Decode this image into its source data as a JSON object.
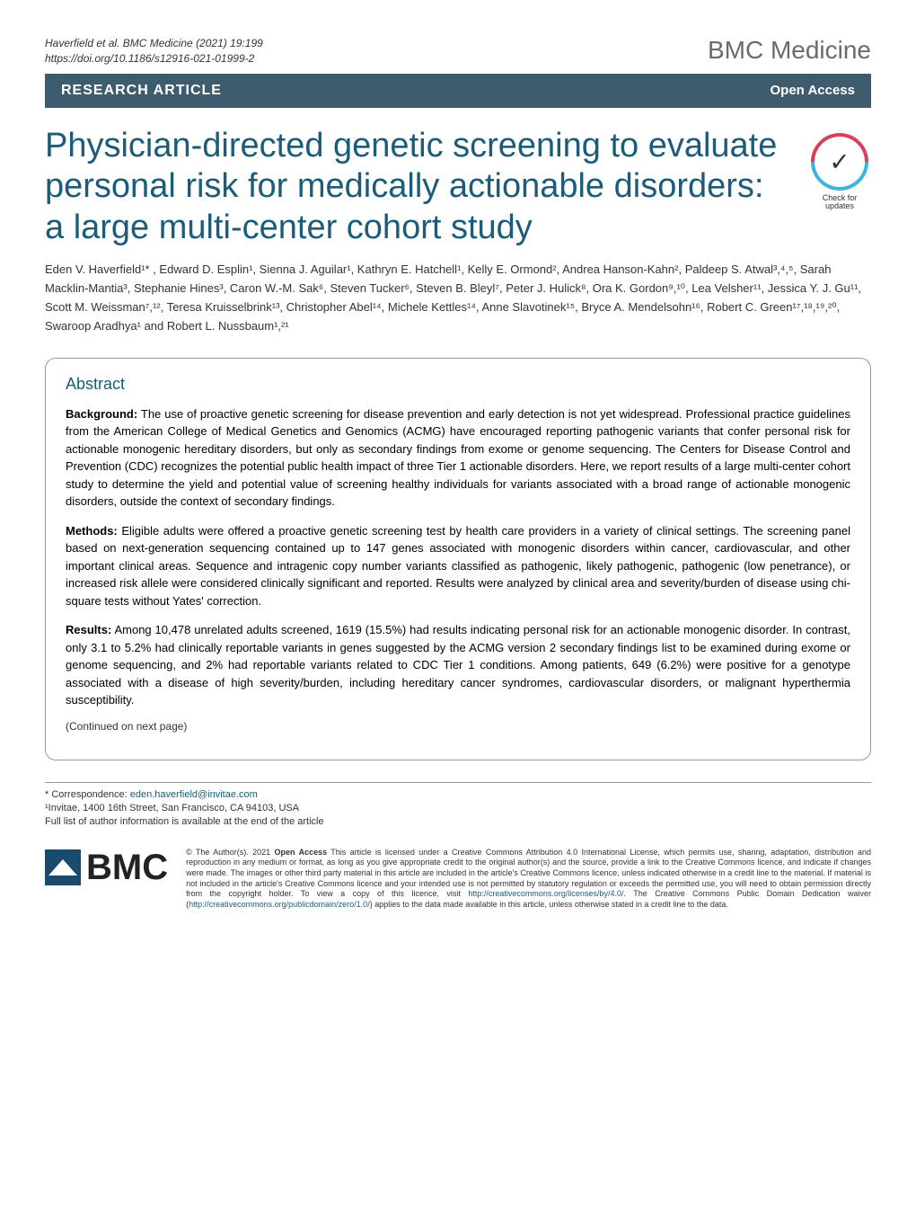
{
  "header": {
    "citation_line1": "Haverfield et al. BMC Medicine          (2021) 19:199",
    "citation_line2": "https://doi.org/10.1186/s12916-021-01999-2",
    "journal": "BMC Medicine"
  },
  "bar": {
    "article_type": "RESEARCH ARTICLE",
    "access": "Open Access"
  },
  "title": "Physician-directed genetic screening to evaluate personal risk for medically actionable disorders: a large multi-center cohort study",
  "check_updates": {
    "line1": "Check for",
    "line2": "updates"
  },
  "authors": "Eden V. Haverfield¹*   , Edward D. Esplin¹, Sienna J. Aguilar¹, Kathryn E. Hatchell¹, Kelly E. Ormond², Andrea Hanson-Kahn², Paldeep S. Atwal³,⁴,⁵, Sarah Macklin-Mantia³, Stephanie Hines³, Caron W.-M. Sak⁶, Steven Tucker⁶, Steven B. Bleyl⁷, Peter J. Hulick⁸, Ora K. Gordon⁹,¹⁰, Lea Velsher¹¹, Jessica Y. J. Gu¹¹, Scott M. Weissman⁷,¹², Teresa Kruisselbrink¹³, Christopher Abel¹⁴, Michele Kettles¹⁴, Anne Slavotinek¹⁵, Bryce A. Mendelsohn¹⁶, Robert C. Green¹⁷,¹⁸,¹⁹,²⁰, Swaroop Aradhya¹ and Robert L. Nussbaum¹,²¹",
  "abstract": {
    "heading": "Abstract",
    "background_label": "Background:",
    "background": " The use of proactive genetic screening for disease prevention and early detection is not yet widespread. Professional practice guidelines from the American College of Medical Genetics and Genomics (ACMG) have encouraged reporting pathogenic variants that confer personal risk for actionable monogenic hereditary disorders, but only as secondary findings from exome or genome sequencing. The Centers for Disease Control and Prevention (CDC) recognizes the potential public health impact of three Tier 1 actionable disorders. Here, we report results of a large multi-center cohort study to determine the yield and potential value of screening healthy individuals for variants associated with a broad range of actionable monogenic disorders, outside the context of secondary findings.",
    "methods_label": "Methods:",
    "methods": " Eligible adults were offered a proactive genetic screening test by health care providers in a variety of clinical settings. The screening panel based on next-generation sequencing contained up to 147 genes associated with monogenic disorders within cancer, cardiovascular, and other important clinical areas. Sequence and intragenic copy number variants classified as pathogenic, likely pathogenic, pathogenic (low penetrance), or increased risk allele were considered clinically significant and reported. Results were analyzed by clinical area and severity/burden of disease using chi-square tests without Yates' correction.",
    "results_label": "Results:",
    "results": " Among 10,478 unrelated adults screened, 1619 (15.5%) had results indicating personal risk for an actionable monogenic disorder. In contrast, only 3.1 to 5.2% had clinically reportable variants in genes suggested by the ACMG version 2 secondary findings list to be examined during exome or genome sequencing, and 2% had reportable variants related to CDC Tier 1 conditions. Among patients, 649 (6.2%) were positive for a genotype associated with a disease of high severity/burden, including hereditary cancer syndromes, cardiovascular disorders, or malignant hyperthermia susceptibility.",
    "continued": "(Continued on next page)"
  },
  "correspondence": {
    "star": "* Correspondence: ",
    "email": "eden.haverfield@invitae.com",
    "affil": "¹Invitae, 1400 16th Street, San Francisco, CA 94103, USA",
    "full_list": "Full list of author information is available at the end of the article"
  },
  "license": {
    "copyright": "© The Author(s). 2021 ",
    "open_access_label": "Open Access",
    "text1": " This article is licensed under a Creative Commons Attribution 4.0 International License, which permits use, sharing, adaptation, distribution and reproduction in any medium or format, as long as you give appropriate credit to the original author(s) and the source, provide a link to the Creative Commons licence, and indicate if changes were made. The images or other third party material in this article are included in the article's Creative Commons licence, unless indicated otherwise in a credit line to the material. If material is not included in the article's Creative Commons licence and your intended use is not permitted by statutory regulation or exceeds the permitted use, you will need to obtain permission directly from the copyright holder. To view a copy of this licence, visit ",
    "link1": "http://creativecommons.org/licenses/by/4.0/",
    "text2": ". The Creative Commons Public Domain Dedication waiver (",
    "link2": "http://creativecommons.org/publicdomain/zero/1.0/",
    "text3": ") applies to the data made available in this article, unless otherwise stated in a credit line to the data."
  },
  "bmc_logo": "BMC"
}
